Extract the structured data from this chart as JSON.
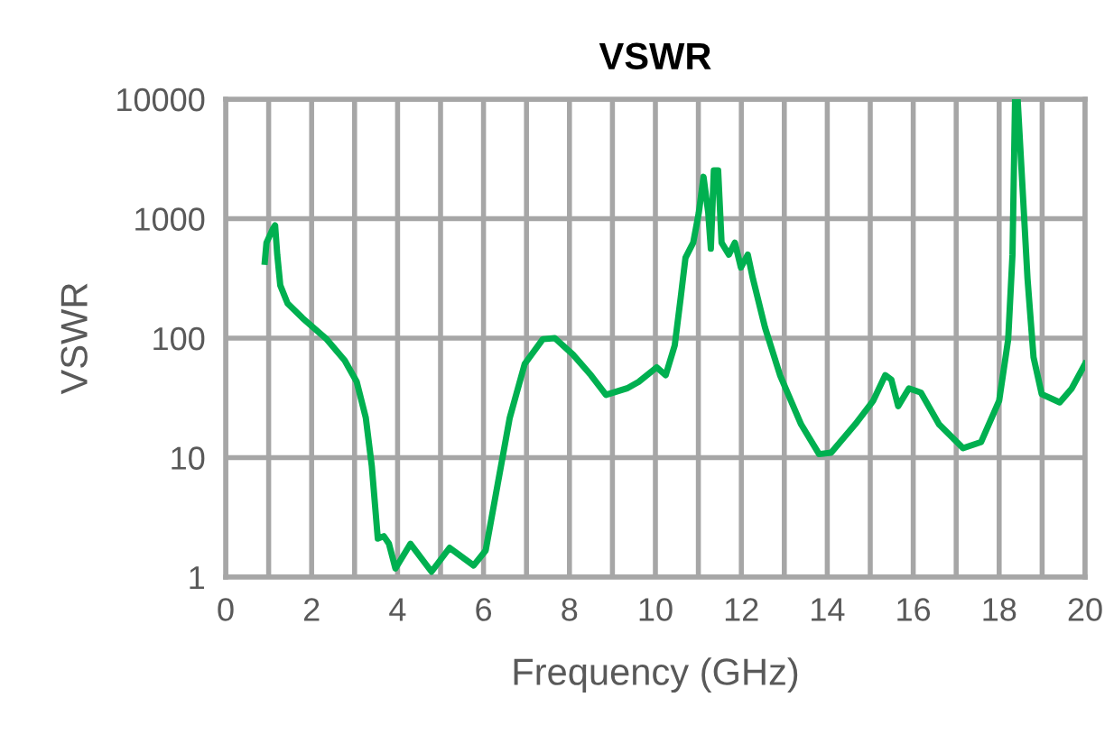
{
  "chart_data": {
    "type": "line",
    "title": "VSWR",
    "xlabel": "Frequency (GHz)",
    "ylabel": "VSWR",
    "log": "y",
    "grid": true,
    "marker": "none",
    "line_style": "solid",
    "xlim": [
      0,
      20
    ],
    "xticks": [
      0,
      {
        "value": 1,
        "label": null
      },
      2,
      {
        "value": 3,
        "label": null
      },
      4,
      {
        "value": 5,
        "label": null
      },
      6,
      {
        "value": 7,
        "label": null
      },
      8,
      {
        "value": 9,
        "label": null
      },
      10,
      {
        "value": 11,
        "label": null
      },
      12,
      {
        "value": 13,
        "label": null
      },
      14,
      {
        "value": 15,
        "label": null
      },
      16,
      {
        "value": 17,
        "label": null
      },
      18,
      {
        "value": 19,
        "label": null
      },
      20
    ],
    "ylim": [
      1,
      10000
    ],
    "yticks": [
      1,
      10,
      100,
      1000,
      10000
    ],
    "series": [
      {
        "color": "#00b050",
        "x": [
          0.91,
          0.95,
          1.09,
          1.15,
          1.2,
          1.27,
          1.44,
          1.79,
          2.35,
          2.77,
          3.05,
          3.26,
          3.4,
          3.54,
          3.68,
          3.8,
          3.95,
          4.3,
          4.79,
          5.21,
          5.77,
          6.05,
          6.33,
          6.61,
          6.96,
          7.38,
          7.66,
          8.08,
          8.5,
          8.85,
          9.34,
          9.61,
          10.03,
          10.24,
          10.45,
          10.59,
          10.7,
          10.88,
          11.01,
          11.12,
          11.23,
          11.29,
          11.36,
          11.46,
          11.54,
          11.71,
          11.85,
          11.99,
          12.15,
          12.27,
          12.55,
          12.9,
          13.39,
          13.81,
          14.09,
          14.65,
          15.07,
          15.35,
          15.49,
          15.65,
          15.9,
          16.18,
          16.6,
          17.16,
          17.58,
          18.0,
          18.21,
          18.31,
          18.37,
          18.43,
          18.66,
          18.8,
          18.99,
          19.41,
          19.69,
          20.0
        ],
        "values": [
          436,
          630,
          810,
          880,
          500,
          277,
          195,
          147,
          98,
          65,
          43,
          21.6,
          8.5,
          2.1,
          2.2,
          1.9,
          1.18,
          1.9,
          1.11,
          1.76,
          1.25,
          1.67,
          6,
          21.5,
          61,
          98,
          100,
          73,
          49,
          33.5,
          38,
          43,
          57,
          49,
          87,
          220,
          470,
          630,
          1120,
          2240,
          1120,
          560,
          2530,
          2530,
          630,
          500,
          630,
          390,
          500,
          314,
          123,
          49,
          19,
          10.7,
          11,
          19,
          30,
          49,
          45,
          27,
          38,
          35,
          19,
          12,
          13.5,
          30,
          98,
          500,
          10000,
          10000,
          314,
          69,
          34,
          29,
          38,
          61
        ]
      }
    ]
  }
}
